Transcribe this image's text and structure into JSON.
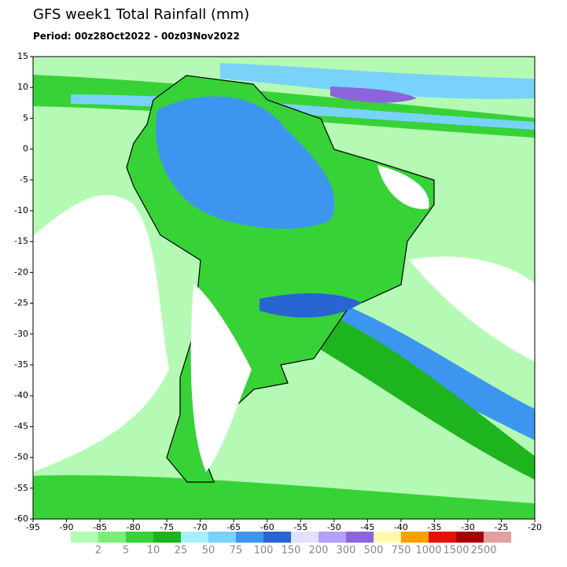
{
  "title": "GFS week1 Total Rainfall (mm)",
  "period": "Period: 00z28Oct2022 - 00z03Nov2022",
  "lon_ticks": [
    -95,
    -90,
    -85,
    -80,
    -75,
    -70,
    -65,
    -60,
    -55,
    -50,
    -45,
    -40,
    -35,
    -30,
    -25,
    -20
  ],
  "lat_ticks": [
    15,
    10,
    5,
    0,
    -5,
    -10,
    -15,
    -20,
    -25,
    -30,
    -35,
    -40,
    -45,
    -50,
    -55,
    -60
  ],
  "colorbar": {
    "labels": [
      2,
      5,
      10,
      25,
      50,
      75,
      100,
      150,
      200,
      300,
      500,
      750,
      1000,
      1500,
      2500
    ],
    "colors": [
      "#b4fab4",
      "#78f078",
      "#37d237",
      "#1eb41e",
      "#a5f0fa",
      "#78d2fa",
      "#3c96f0",
      "#2864d2",
      "#e1e1ff",
      "#b4a0fa",
      "#8c64dc",
      "#fffaaa",
      "#ffa000",
      "#e11400",
      "#a50000",
      "#e1a0a0"
    ]
  }
}
